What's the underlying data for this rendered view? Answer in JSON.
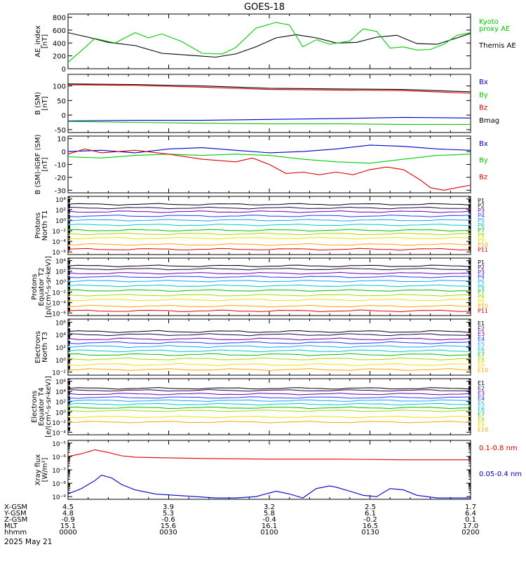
{
  "title": "GOES-18",
  "date_label": "2025 May 21",
  "footer": {
    "row_labels": [
      "X-GSM",
      "Y-GSM",
      "Z-GSM",
      "MLT",
      "hhmm"
    ],
    "columns": [
      {
        "values": [
          "4.5",
          "4.8",
          "-0.9",
          "15.1",
          "0000"
        ]
      },
      {
        "values": [
          "3.9",
          "5.3",
          "-0.6",
          "15.6",
          "0030"
        ]
      },
      {
        "values": [
          "3.2",
          "5.8",
          "-0.4",
          "16.1",
          "0100"
        ]
      },
      {
        "values": [
          "2.5",
          "6.1",
          "-0.2",
          "16.5",
          "0130"
        ]
      },
      {
        "values": [
          "1.7",
          "6.4",
          "0.1",
          "17.0",
          "0200"
        ]
      }
    ]
  },
  "colors": {
    "black": "#000000",
    "green": "#00cc00",
    "red": "#dd0000",
    "blue": "#0000cc",
    "spectrum": [
      "#000000",
      "#2a0050",
      "#6a00b0",
      "#1e3cff",
      "#1aa0ff",
      "#00c8c8",
      "#00c000",
      "#a8d800",
      "#f0e000",
      "#ffa500",
      "#e00000",
      "#a00000"
    ]
  },
  "chart_data": [
    {
      "type": "line",
      "ylabel": "AE_index\n[nT]",
      "yticks": [
        0,
        200,
        400,
        600,
        800
      ],
      "ylim": [
        0,
        850
      ],
      "xlim": [
        0,
        120
      ],
      "legend": [
        {
          "text": "Kyoto\nproxy AE",
          "color": "green"
        },
        {
          "text": "Themis AE",
          "color": "black"
        }
      ],
      "series": [
        {
          "name": "Themis AE",
          "color": "black",
          "x": [
            0,
            6,
            12,
            20,
            28,
            36,
            44,
            50,
            56,
            62,
            68,
            74,
            80,
            86,
            92,
            98,
            104,
            110,
            116,
            120
          ],
          "y": [
            560,
            490,
            410,
            360,
            240,
            210,
            180,
            230,
            340,
            480,
            530,
            480,
            400,
            410,
            490,
            520,
            390,
            380,
            480,
            550
          ]
        },
        {
          "name": "Kyoto proxy AE",
          "color": "green",
          "x": [
            0,
            4,
            8,
            14,
            20,
            24,
            28,
            34,
            40,
            46,
            50,
            56,
            62,
            66,
            70,
            74,
            78,
            84,
            88,
            92,
            96,
            100,
            104,
            108,
            112,
            116,
            120
          ],
          "y": [
            100,
            280,
            470,
            400,
            560,
            480,
            540,
            420,
            240,
            230,
            330,
            630,
            720,
            680,
            340,
            450,
            380,
            430,
            620,
            580,
            320,
            340,
            290,
            300,
            380,
            520,
            560
          ]
        }
      ]
    },
    {
      "type": "line",
      "ylabel": "B (SM)\n[nT]",
      "yticks": [
        -50,
        0,
        50,
        100
      ],
      "ylim": [
        -60,
        140
      ],
      "xlim": [
        0,
        120
      ],
      "legend": [
        {
          "text": "Bx",
          "color": "blue"
        },
        {
          "text": "By",
          "color": "green"
        },
        {
          "text": "Bz",
          "color": "red"
        },
        {
          "text": "Bmag",
          "color": "black"
        }
      ],
      "series": [
        {
          "name": "Bx",
          "color": "blue",
          "x": [
            0,
            20,
            40,
            60,
            80,
            100,
            120
          ],
          "y": [
            -20,
            -18,
            -18,
            -15,
            -12,
            -8,
            -10
          ]
        },
        {
          "name": "By",
          "color": "green",
          "x": [
            0,
            20,
            40,
            60,
            80,
            100,
            120
          ],
          "y": [
            -22,
            -25,
            -28,
            -30,
            -30,
            -32,
            -32
          ]
        },
        {
          "name": "Bz",
          "color": "red",
          "x": [
            0,
            20,
            40,
            60,
            80,
            100,
            120
          ],
          "y": [
            104,
            102,
            96,
            88,
            86,
            84,
            75
          ]
        },
        {
          "name": "Bmag",
          "color": "black",
          "x": [
            0,
            20,
            40,
            60,
            80,
            100,
            120
          ],
          "y": [
            107,
            105,
            100,
            92,
            90,
            88,
            80
          ]
        }
      ]
    },
    {
      "type": "line",
      "ylabel": "B (SM)-IGRF (SM)\n[nT]",
      "yticks": [
        -30,
        -20,
        -10,
        0,
        10
      ],
      "ylim": [
        -32,
        12
      ],
      "xlim": [
        0,
        120
      ],
      "legend": [
        {
          "text": "Bx",
          "color": "blue"
        },
        {
          "text": "By",
          "color": "green"
        },
        {
          "text": "Bz",
          "color": "red"
        }
      ],
      "series": [
        {
          "name": "Bx",
          "color": "blue",
          "x": [
            0,
            10,
            20,
            30,
            40,
            50,
            60,
            70,
            80,
            90,
            100,
            110,
            120
          ],
          "y": [
            0,
            1,
            -1,
            2,
            3,
            1,
            -1,
            0,
            2,
            5,
            4,
            2,
            1
          ]
        },
        {
          "name": "By",
          "color": "green",
          "x": [
            0,
            10,
            20,
            30,
            40,
            50,
            60,
            70,
            80,
            90,
            100,
            110,
            120
          ],
          "y": [
            -4,
            -5,
            -3,
            -2,
            -3,
            -2,
            -3,
            -6,
            -8,
            -9,
            -6,
            -3,
            -2
          ]
        },
        {
          "name": "Bz",
          "color": "red",
          "x": [
            0,
            5,
            10,
            20,
            30,
            40,
            50,
            55,
            60,
            65,
            70,
            75,
            80,
            85,
            90,
            95,
            100,
            105,
            108,
            112,
            116,
            120
          ],
          "y": [
            -2,
            2,
            -1,
            1,
            -2,
            -6,
            -8,
            -5,
            -10,
            -17,
            -16,
            -18,
            -16,
            -18,
            -14,
            -12,
            -14,
            -22,
            -28,
            -30,
            -28,
            -26
          ]
        }
      ]
    },
    {
      "type": "line",
      "log": true,
      "ylabel": "Protons\nNorth T1",
      "yticks_exp": [
        -6,
        -4,
        -2,
        0,
        2,
        4
      ],
      "ylim": [
        -6.5,
        4.5
      ],
      "xlim": [
        0,
        120
      ],
      "legend_labels": [
        "P1",
        "P2",
        "P3",
        "P4",
        "P5",
        "P6",
        "P7",
        "P8",
        "P9",
        "P10",
        "P11"
      ],
      "levels": [
        3.0,
        2.3,
        1.6,
        0.8,
        0.0,
        -0.9,
        -1.9,
        -2.6,
        -3.4,
        -4.6,
        -5.5
      ]
    },
    {
      "type": "line",
      "log": true,
      "ylabel": "Protons\nEquator T2\n[p/(cm²-s-sr-keV)]",
      "yticks_exp": [
        -6,
        -4,
        -2,
        0,
        2,
        4
      ],
      "ylim": [
        -6.5,
        4.5
      ],
      "xlim": [
        0,
        120
      ],
      "legend_labels": [
        "P1",
        "P2",
        "P3",
        "P4",
        "P5",
        "P6",
        "P7",
        "P8",
        "P9",
        "P10",
        "P11"
      ],
      "levels": [
        3.0,
        2.4,
        1.6,
        0.9,
        0.1,
        -0.8,
        -1.7,
        -2.6,
        -3.5,
        -4.7,
        -5.6
      ]
    },
    {
      "type": "line",
      "log": true,
      "ylabel": "Electrons\nNorth T3",
      "yticks_exp": [
        -2,
        0,
        2,
        4,
        6
      ],
      "ylim": [
        -2.5,
        6.5
      ],
      "xlim": [
        0,
        120
      ],
      "legend_labels": [
        "E1",
        "E2",
        "E3",
        "E4",
        "E5",
        "E6",
        "E7",
        "E8",
        "E9",
        "E10"
      ],
      "levels": [
        4.5,
        4.0,
        3.3,
        2.7,
        2.1,
        1.4,
        0.8,
        0.1,
        -0.8,
        -1.6
      ]
    },
    {
      "type": "line",
      "log": true,
      "ylabel": "Electrons\nEquator T4\n[e/(cm²-s-sr-keV)]",
      "yticks_exp": [
        -4,
        -2,
        0,
        2,
        4,
        6
      ],
      "ylim": [
        -4.5,
        6.5
      ],
      "xlim": [
        0,
        120
      ],
      "legend_labels": [
        "E1",
        "E2",
        "E3",
        "E4",
        "E5",
        "E6",
        "E7",
        "E8",
        "E9",
        "E10"
      ],
      "levels": [
        4.6,
        4.2,
        3.5,
        2.8,
        2.2,
        1.5,
        0.8,
        0.2,
        -1.0,
        -2.0
      ]
    },
    {
      "type": "line",
      "log": true,
      "ylabel": "Xray flux\n[W/m²]",
      "yticks_exp": [
        -9,
        -8,
        -7,
        -6,
        -5
      ],
      "ylim": [
        -9.2,
        -4.8
      ],
      "xlim": [
        0,
        120
      ],
      "legend": [
        {
          "text": "0.1-0.8 nm",
          "color": "red"
        },
        {
          "text": "0.05-0.4 nm",
          "color": "blue"
        }
      ],
      "series": [
        {
          "name": "0.1-0.8 nm",
          "color": "red",
          "x": [
            0,
            4,
            8,
            12,
            16,
            20,
            28,
            40,
            60,
            80,
            100,
            120
          ],
          "y": [
            -6.0,
            -5.8,
            -5.5,
            -5.7,
            -5.95,
            -6.05,
            -6.1,
            -6.15,
            -6.2,
            -6.2,
            -6.25,
            -6.25
          ]
        },
        {
          "name": "0.05-0.4 nm",
          "color": "blue",
          "x": [
            0,
            4,
            8,
            10,
            13,
            16,
            20,
            26,
            32,
            38,
            44,
            50,
            56,
            62,
            66,
            70,
            74,
            78,
            80,
            84,
            88,
            92,
            96,
            100,
            104,
            110,
            116,
            120
          ],
          "y": [
            -8.8,
            -8.4,
            -7.8,
            -7.4,
            -7.6,
            -8.1,
            -8.5,
            -8.8,
            -8.9,
            -9.0,
            -9.1,
            -9.1,
            -9.0,
            -8.6,
            -8.8,
            -9.1,
            -8.4,
            -8.2,
            -8.3,
            -8.6,
            -8.9,
            -9.0,
            -8.4,
            -8.5,
            -8.9,
            -9.1,
            -9.1,
            -9.1
          ]
        }
      ]
    }
  ]
}
